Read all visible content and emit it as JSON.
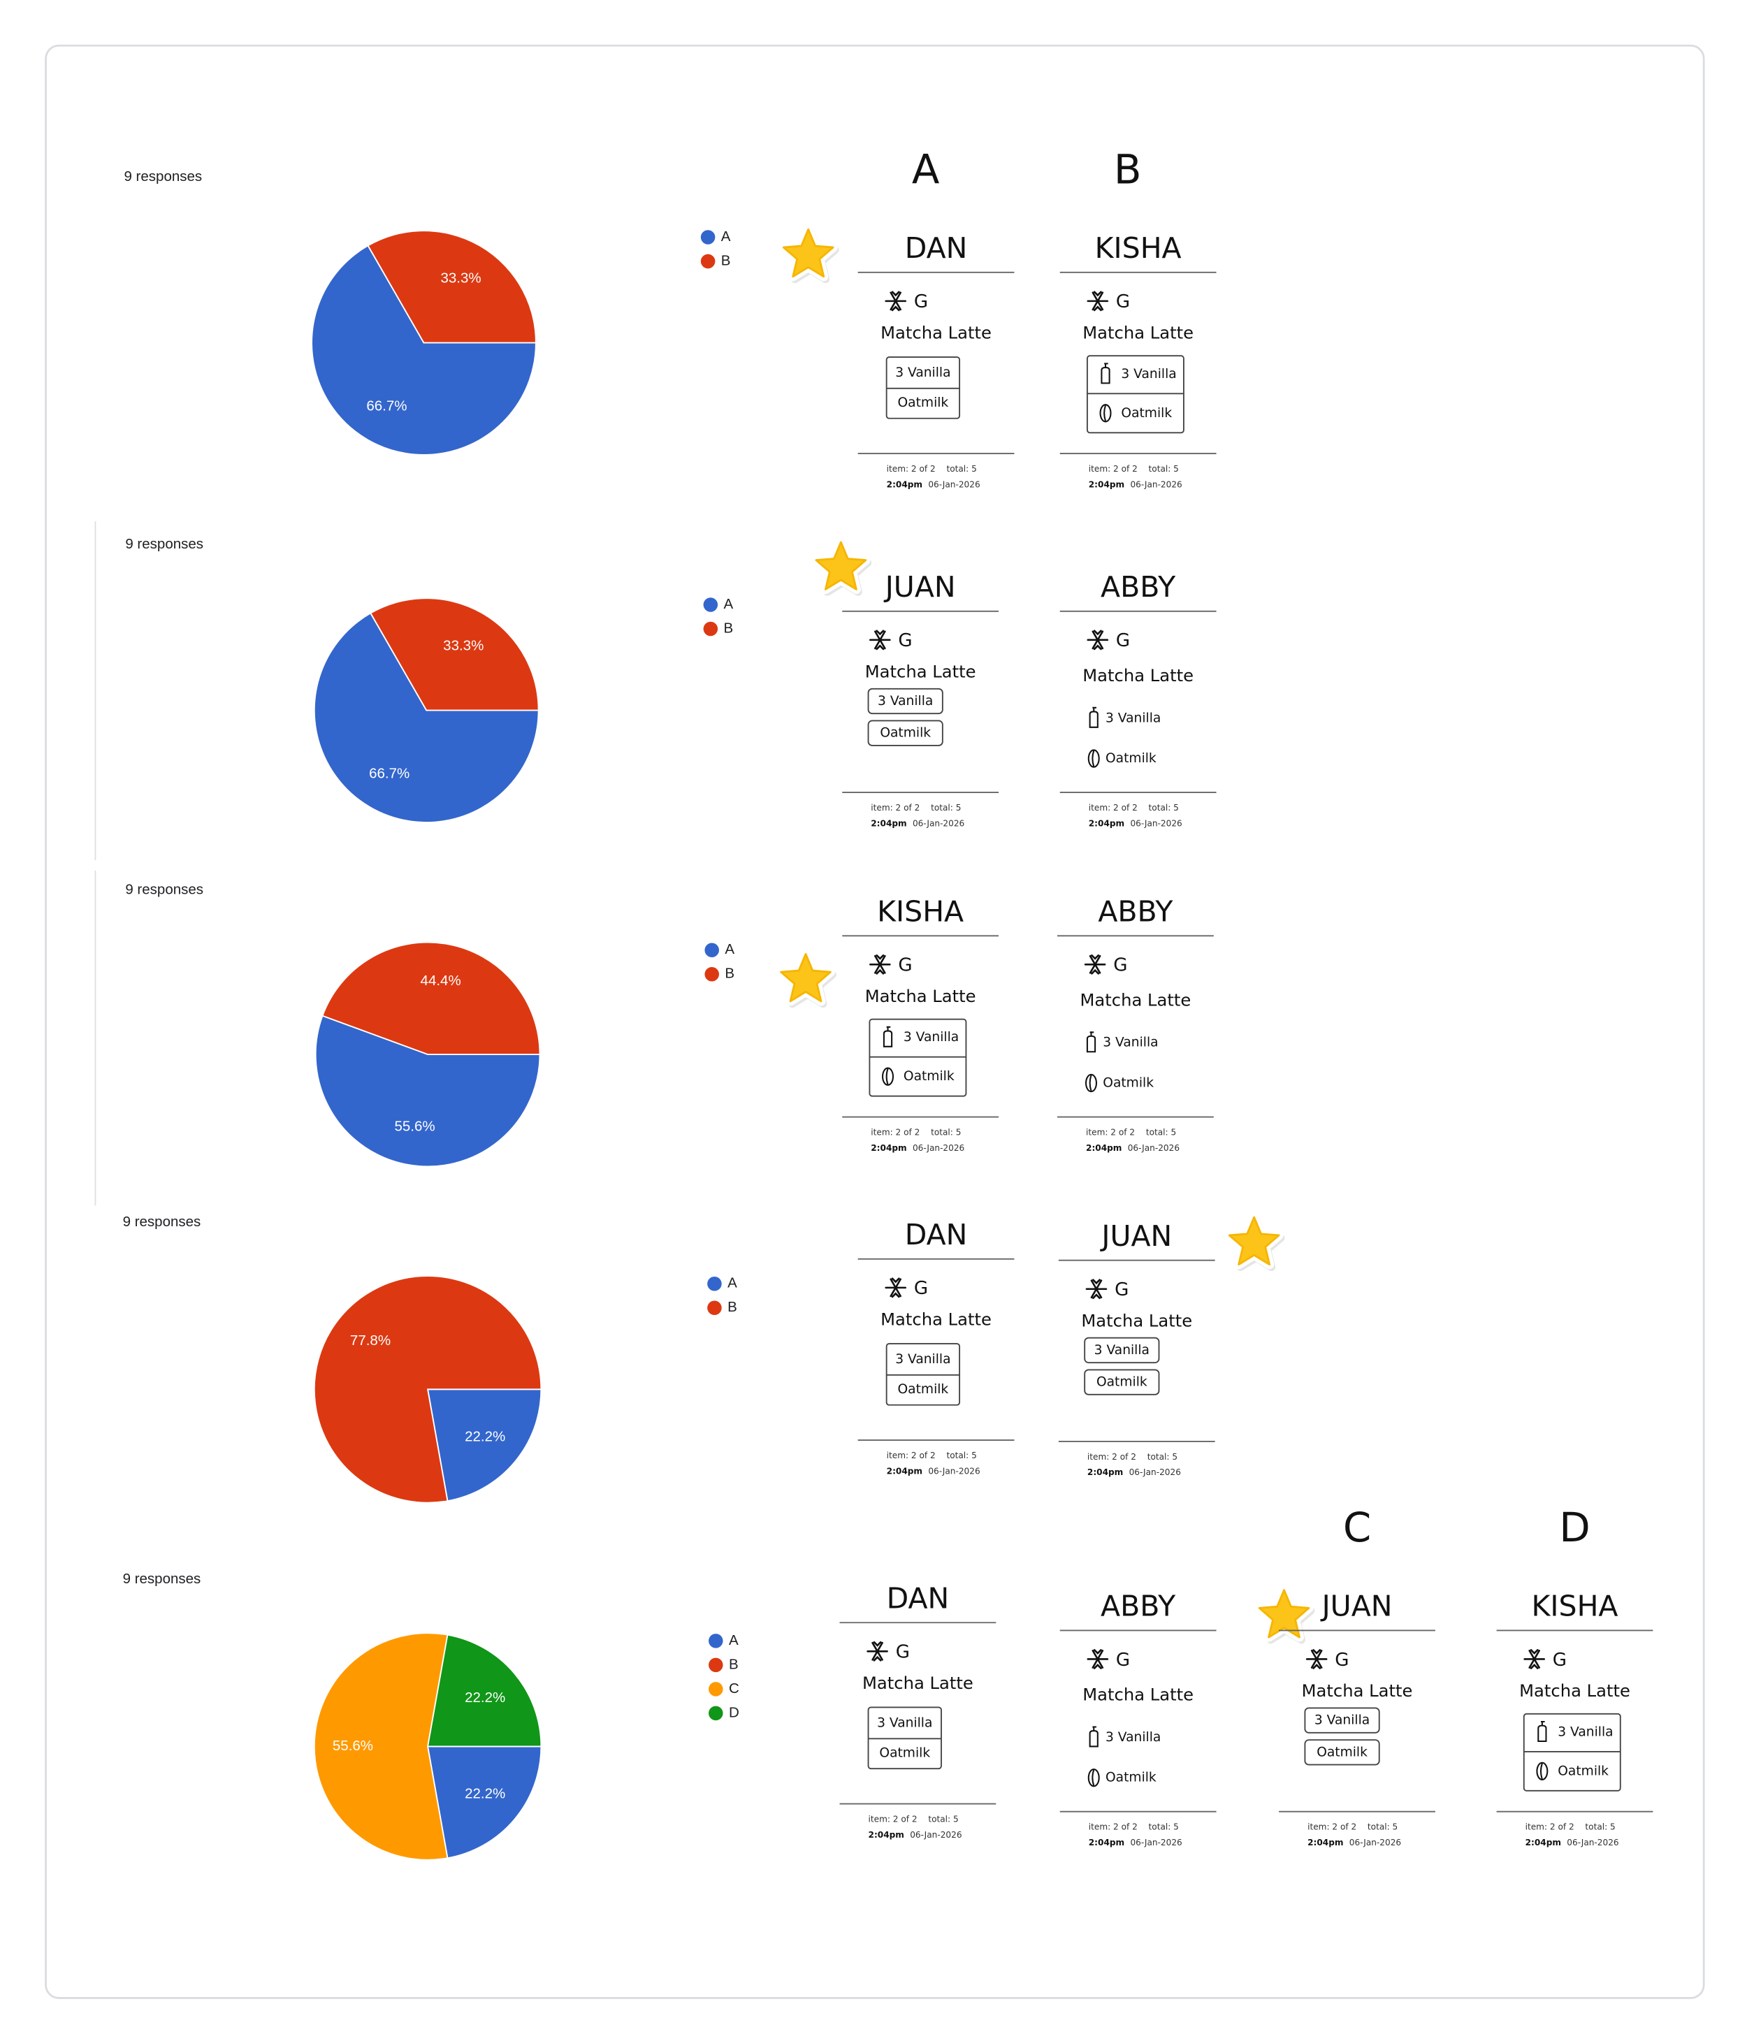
{
  "chart_data": [
    {
      "type": "pie",
      "subtitle": "9 responses",
      "categories": [
        "A",
        "B"
      ],
      "values": [
        66.7,
        33.3
      ],
      "value_labels": [
        "66.7%",
        "33.3%"
      ],
      "colors": [
        "#3366cc",
        "#dc3912"
      ]
    },
    {
      "type": "pie",
      "subtitle": "9 responses",
      "categories": [
        "A",
        "B"
      ],
      "values": [
        66.7,
        33.3
      ],
      "value_labels": [
        "66.7%",
        "33.3%"
      ],
      "colors": [
        "#3366cc",
        "#dc3912"
      ]
    },
    {
      "type": "pie",
      "subtitle": "9 responses",
      "categories": [
        "A",
        "B"
      ],
      "values": [
        55.6,
        44.4
      ],
      "value_labels": [
        "55.6%",
        "44.4%"
      ],
      "colors": [
        "#3366cc",
        "#dc3912"
      ]
    },
    {
      "type": "pie",
      "subtitle": "9 responses",
      "categories": [
        "A",
        "B"
      ],
      "values": [
        22.2,
        77.8
      ],
      "value_labels": [
        "22.2%",
        "77.8%"
      ],
      "colors": [
        "#3366cc",
        "#dc3912"
      ]
    },
    {
      "type": "pie",
      "subtitle": "9 responses",
      "categories": [
        "A",
        "B",
        "C",
        "D"
      ],
      "values": [
        22.2,
        0,
        55.6,
        22.2
      ],
      "value_labels": [
        "22.2%",
        null,
        "55.6%",
        "22.2%"
      ],
      "colors": [
        "#3366cc",
        "#dc3912",
        "#ff9900",
        "#109618"
      ]
    }
  ],
  "rows": [
    {
      "tickets": [
        {
          "header": "A",
          "name": "DAN",
          "starred": true,
          "temperature": "G",
          "drink": "Matcha Latte",
          "modifiers": [
            "3 Vanilla",
            "Oatmilk"
          ],
          "modifier_style": "boxed",
          "item": "item: 2 of 2",
          "total": "total: 5",
          "time": "2:04pm",
          "date": "06-Jan-2026"
        },
        {
          "header": "B",
          "name": "KISHA",
          "starred": false,
          "temperature": "G",
          "drink": "Matcha Latte",
          "modifiers": [
            "3 Vanilla",
            "Oatmilk"
          ],
          "modifier_style": "boxed-icons",
          "item": "item: 2 of 2",
          "total": "total: 5",
          "time": "2:04pm",
          "date": "06-Jan-2026"
        }
      ]
    },
    {
      "tickets": [
        {
          "name": "JUAN",
          "starred": true,
          "temperature": "G",
          "drink": "Matcha Latte",
          "modifiers": [
            "3 Vanilla",
            "Oatmilk"
          ],
          "modifier_style": "pills",
          "item": "item: 2 of 2",
          "total": "total: 5",
          "time": "2:04pm",
          "date": "06-Jan-2026"
        },
        {
          "name": "ABBY",
          "starred": false,
          "temperature": "G",
          "drink": "Matcha Latte",
          "modifiers": [
            "3 Vanilla",
            "Oatmilk"
          ],
          "modifier_style": "icons",
          "item": "item: 2 of 2",
          "total": "total: 5",
          "time": "2:04pm",
          "date": "06-Jan-2026"
        }
      ]
    },
    {
      "tickets": [
        {
          "name": "KISHA",
          "starred": true,
          "temperature": "G",
          "drink": "Matcha Latte",
          "modifiers": [
            "3 Vanilla",
            "Oatmilk"
          ],
          "modifier_style": "boxed-icons",
          "item": "item: 2 of 2",
          "total": "total: 5",
          "time": "2:04pm",
          "date": "06-Jan-2026"
        },
        {
          "name": "ABBY",
          "starred": false,
          "temperature": "G",
          "drink": "Matcha Latte",
          "modifiers": [
            "3 Vanilla",
            "Oatmilk"
          ],
          "modifier_style": "icons",
          "item": "item: 2 of 2",
          "total": "total: 5",
          "time": "2:04pm",
          "date": "06-Jan-2026"
        }
      ]
    },
    {
      "tickets": [
        {
          "name": "DAN",
          "starred": false,
          "temperature": "G",
          "drink": "Matcha Latte",
          "modifiers": [
            "3 Vanilla",
            "Oatmilk"
          ],
          "modifier_style": "boxed",
          "item": "item: 2 of 2",
          "total": "total: 5",
          "time": "2:04pm",
          "date": "06-Jan-2026"
        },
        {
          "name": "JUAN",
          "starred": true,
          "temperature": "G",
          "drink": "Matcha Latte",
          "modifiers": [
            "3 Vanilla",
            "Oatmilk"
          ],
          "modifier_style": "pills",
          "item": "item: 2 of 2",
          "total": "total: 5",
          "time": "2:04pm",
          "date": "06-Jan-2026"
        }
      ]
    },
    {
      "tickets": [
        {
          "name": "DAN",
          "starred": false,
          "temperature": "G",
          "drink": "Matcha Latte",
          "modifiers": [
            "3 Vanilla",
            "Oatmilk"
          ],
          "modifier_style": "boxed",
          "item": "item: 2 of 2",
          "total": "total: 5",
          "time": "2:04pm",
          "date": "06-Jan-2026"
        },
        {
          "name": "ABBY",
          "starred": false,
          "temperature": "G",
          "drink": "Matcha Latte",
          "modifiers": [
            "3 Vanilla",
            "Oatmilk"
          ],
          "modifier_style": "icons",
          "item": "item: 2 of 2",
          "total": "total: 5",
          "time": "2:04pm",
          "date": "06-Jan-2026"
        },
        {
          "header": "C",
          "name": "JUAN",
          "starred": true,
          "temperature": "G",
          "drink": "Matcha Latte",
          "modifiers": [
            "3 Vanilla",
            "Oatmilk"
          ],
          "modifier_style": "pills",
          "item": "item: 2 of 2",
          "total": "total: 5",
          "time": "2:04pm",
          "date": "06-Jan-2026"
        },
        {
          "header": "D",
          "name": "KISHA",
          "starred": false,
          "temperature": "G",
          "drink": "Matcha Latte",
          "modifiers": [
            "3 Vanilla",
            "Oatmilk"
          ],
          "modifier_style": "boxed-icons",
          "item": "item: 2 of 2",
          "total": "total: 5",
          "time": "2:04pm",
          "date": "06-Jan-2026"
        }
      ]
    }
  ]
}
